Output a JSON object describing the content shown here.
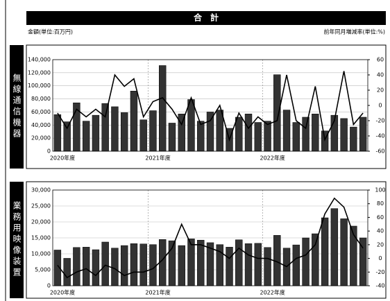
{
  "header": {
    "title": "合　計",
    "left_unit": "金額(単位:百万円)",
    "right_unit": "前年同月増減率(単位:%)"
  },
  "chart_data": [
    {
      "type": "bar_line",
      "title": "無線通信機器",
      "categories": [
        "2020年度",
        null,
        null,
        null,
        null,
        null,
        null,
        null,
        null,
        null,
        "2021年度",
        null,
        null,
        null,
        null,
        null,
        null,
        null,
        null,
        null,
        null,
        null,
        "2022年度",
        null,
        null,
        null,
        null,
        null,
        null,
        null,
        null,
        null,
        null
      ],
      "series": [
        {
          "type": "bar",
          "color": "#333333",
          "values": [
            56000,
            45000,
            74000,
            46000,
            55000,
            73000,
            68000,
            59000,
            92000,
            48000,
            62000,
            131000,
            43000,
            57000,
            79000,
            46000,
            60000,
            63000,
            35000,
            52000,
            57000,
            44000,
            46000,
            117000,
            63000,
            44000,
            52000,
            57000,
            31000,
            55000,
            50000,
            37000,
            52000
          ]
        },
        {
          "type": "line",
          "axis": "y2",
          "color": "#000000",
          "values": [
            -10,
            -30,
            -5,
            -15,
            -5,
            -15,
            40,
            25,
            35,
            -15,
            5,
            10,
            -5,
            -25,
            10,
            -25,
            -20,
            0,
            -45,
            -10,
            -30,
            -15,
            -25,
            -20,
            40,
            -20,
            -30,
            25,
            -45,
            -20,
            45,
            -25,
            -10
          ]
        }
      ],
      "ylim": [
        0,
        140000
      ],
      "yticks": [
        0,
        {
          "value": 20000,
          "label": "20,000"
        },
        {
          "value": 40000,
          "label": "40,000"
        },
        {
          "value": 60000,
          "label": "60,000"
        },
        {
          "value": 80000,
          "label": "80,000"
        },
        {
          "value": 100000,
          "label": "100,000"
        },
        {
          "value": 120000,
          "label": "120,000"
        },
        {
          "value": 140000,
          "label": "140,000"
        }
      ],
      "y2lim": [
        -60,
        60
      ],
      "y2ticks": [
        -60,
        -40,
        -20,
        0,
        20,
        40,
        60
      ]
    },
    {
      "type": "bar_line",
      "title": "業務用映像装置",
      "categories": [
        "2020年度",
        null,
        null,
        null,
        null,
        null,
        null,
        null,
        null,
        null,
        "2021年度",
        null,
        null,
        null,
        null,
        null,
        null,
        null,
        null,
        null,
        null,
        null,
        "2022年度",
        null,
        null,
        null,
        null,
        null,
        null,
        null,
        null,
        null,
        null
      ],
      "series": [
        {
          "type": "bar",
          "color": "#333333",
          "values": [
            11200,
            8600,
            12000,
            12100,
            11300,
            13700,
            11800,
            12600,
            13200,
            13100,
            12900,
            14500,
            14100,
            12600,
            14700,
            14300,
            13500,
            12900,
            12100,
            14400,
            13200,
            13300,
            12000,
            15800,
            11800,
            12800,
            15000,
            16300,
            21300,
            24200,
            21000,
            18700,
            15000
          ]
        },
        {
          "type": "line",
          "axis": "y2",
          "color": "#000000",
          "values": [
            -10,
            -28,
            -20,
            -15,
            -25,
            -10,
            -15,
            -25,
            -20,
            -20,
            -15,
            -2,
            15,
            50,
            20,
            20,
            15,
            10,
            0,
            15,
            5,
            0,
            0,
            -5,
            -12,
            0,
            5,
            20,
            65,
            88,
            75,
            35,
            15
          ]
        }
      ],
      "ylim": [
        0,
        30000
      ],
      "yticks": [
        0,
        {
          "value": 5000,
          "label": "5,000"
        },
        {
          "value": 10000,
          "label": "10,000"
        },
        {
          "value": 15000,
          "label": "15,000"
        },
        {
          "value": 20000,
          "label": "20,000"
        },
        {
          "value": 25000,
          "label": "25,000"
        },
        {
          "value": 30000,
          "label": "30,000"
        }
      ],
      "y2lim": [
        -40,
        100
      ],
      "y2ticks": [
        -40,
        -20,
        0,
        20,
        40,
        60,
        80,
        100
      ]
    }
  ]
}
